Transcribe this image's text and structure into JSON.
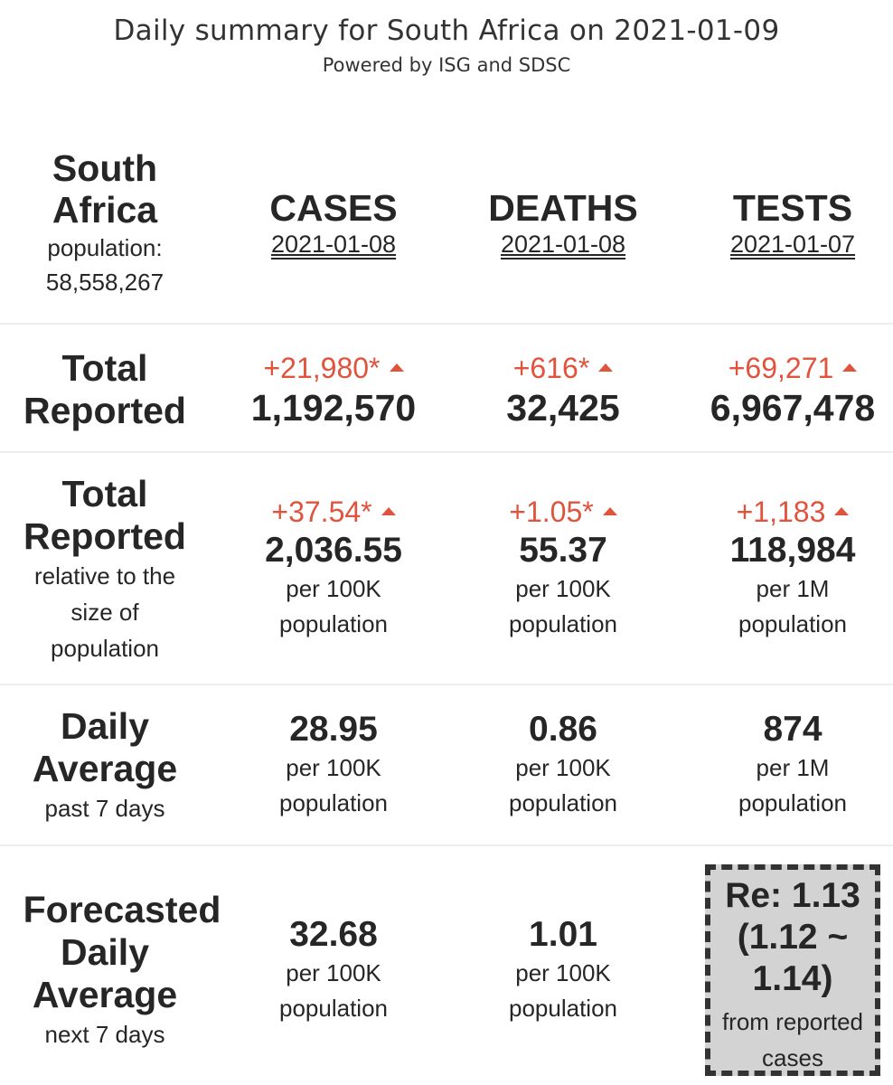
{
  "header": {
    "title": "Daily summary for South Africa on 2021-01-09",
    "subtitle": "Powered by ISG and SDSC"
  },
  "country": {
    "name_line1": "South",
    "name_line2": "Africa",
    "population_label": "population:",
    "population_value": "58,558,267"
  },
  "columns": [
    {
      "name": "CASES",
      "date": "2021-01-08"
    },
    {
      "name": "DEATHS",
      "date": "2021-01-08"
    },
    {
      "name": "TESTS",
      "date": "2021-01-07"
    }
  ],
  "rows": {
    "total_reported": {
      "label_line1": "Total",
      "label_line2": "Reported",
      "cells": [
        {
          "delta": "+21,980*",
          "value": "1,192,570"
        },
        {
          "delta": "+616*",
          "value": "32,425"
        },
        {
          "delta": "+69,271",
          "value": "6,967,478"
        }
      ]
    },
    "relative": {
      "label_line1": "Total",
      "label_line2": "Reported",
      "sub_line1": "relative to the",
      "sub_line2": "size of",
      "sub_line3": "population",
      "cells": [
        {
          "delta": "+37.54*",
          "value": "2,036.55",
          "unit_line1": "per 100K",
          "unit_line2": "population"
        },
        {
          "delta": "+1.05*",
          "value": "55.37",
          "unit_line1": "per 100K",
          "unit_line2": "population"
        },
        {
          "delta": "+1,183",
          "value": "118,984",
          "unit_line1": "per 1M",
          "unit_line2": "population"
        }
      ]
    },
    "daily_average": {
      "label_line1": "Daily",
      "label_line2": "Average",
      "sub": "past 7 days",
      "cells": [
        {
          "value": "28.95",
          "unit_line1": "per 100K",
          "unit_line2": "population"
        },
        {
          "value": "0.86",
          "unit_line1": "per 100K",
          "unit_line2": "population"
        },
        {
          "value": "874",
          "unit_line1": "per 1M",
          "unit_line2": "population"
        }
      ]
    },
    "forecast": {
      "label_line1": "Forecasted",
      "label_line2": "Daily",
      "label_line3": "Average",
      "sub": "next 7 days",
      "cells": [
        {
          "value": "32.68",
          "unit_line1": "per 100K",
          "unit_line2": "population"
        },
        {
          "value": "1.01",
          "unit_line1": "per 100K",
          "unit_line2": "population"
        }
      ],
      "re": {
        "line1": "Re: 1.13",
        "line2": "(1.12 ~",
        "line3": "1.14)",
        "sub_line1": "from reported",
        "sub_line2": "cases"
      }
    }
  },
  "colors": {
    "increase": "#e0533d",
    "text": "#262626",
    "re_box_bg": "#d3d3d3"
  },
  "icons": {
    "increase": "triangle-up-icon"
  }
}
